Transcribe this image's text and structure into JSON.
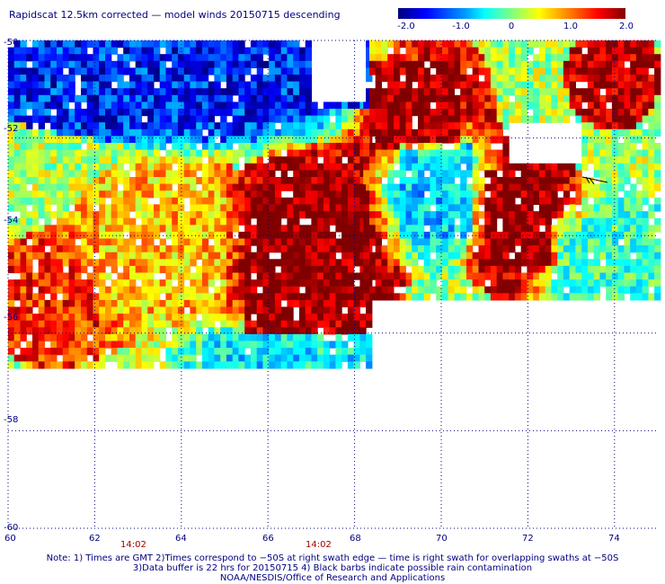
{
  "title": "Rapidscat 12.5km corrected — model winds 20150715 descending",
  "colorbar": {
    "labels": [
      "-2.0",
      "-1.0",
      "0",
      "1.0",
      "2.0"
    ],
    "values": [
      -2.0,
      -1.0,
      0.0,
      1.0,
      2.0
    ],
    "colors": [
      "#00007f",
      "#0000ff",
      "#00a0ff",
      "#00ffff",
      "#80ff80",
      "#ffff00",
      "#ff8000",
      "#ff0000",
      "#800000"
    ]
  },
  "axes": {
    "lon_ticks": [
      "60",
      "62",
      "64",
      "66",
      "68",
      "70",
      "72",
      "74"
    ],
    "lat_ticks": [
      "-50",
      "-52",
      "-54",
      "-56",
      "-58",
      "-60"
    ],
    "grid": "dotted"
  },
  "times": [
    {
      "label": "14:02",
      "lon": 62.8
    },
    {
      "label": "14:02",
      "lon": 66.8
    }
  ],
  "notes": [
    "Note: 1) Times are GMT 2)Times correspond to −50S at right swath edge — time is right swath for overlapping swaths at −50S",
    "3)Data buffer is 22 hrs for 20150715 4) Black barbs indicate possible rain contamination",
    "NOAA/NESDIS/Office of Research and Applications"
  ],
  "map": {
    "lon_range": [
      60,
      75
    ],
    "lat_range": [
      -50,
      -60
    ],
    "swaths": [
      {
        "name": "west",
        "lon": [
          60,
          68.3
        ],
        "lat": [
          -50,
          -56.6
        ]
      },
      {
        "name": "east",
        "lon": [
          68.2,
          75
        ],
        "lat": [
          -50,
          -55.3
        ]
      }
    ],
    "regions": [
      {
        "lon": [
          65.4,
          68.3
        ],
        "lat": [
          -53.0,
          -56.0
        ],
        "value": 2.2
      },
      {
        "lon": [
          68.3,
          70.4
        ],
        "lat": [
          -50.3,
          -52.2
        ],
        "value": 2.2
      },
      {
        "lon": [
          70.9,
          72.6
        ],
        "lat": [
          -52.6,
          -54.6
        ],
        "value": 2.2
      },
      {
        "lon": [
          73.4,
          74.4
        ],
        "lat": [
          -50.1,
          -51.2
        ],
        "value": 2.0
      },
      {
        "lon": [
          62.0,
          65.0
        ],
        "lat": [
          -53.0,
          -55.5
        ],
        "value": 0.8
      },
      {
        "lon": [
          60.0,
          62.0
        ],
        "lat": [
          -54.5,
          -56.0
        ],
        "value": 1.5
      },
      {
        "lon": [
          60.0,
          68.3
        ],
        "lat": [
          -50.0,
          -51.4
        ],
        "value": -1.6
      },
      {
        "lon": [
          64.5,
          68.3
        ],
        "lat": [
          -55.9,
          -56.6
        ],
        "value": -0.7
      },
      {
        "lon": [
          69.0,
          70.6
        ],
        "lat": [
          -52.0,
          -54.0
        ],
        "value": -0.8
      },
      {
        "lon": [
          72.5,
          75.0
        ],
        "lat": [
          -53.6,
          -55.3
        ],
        "value": -0.3
      }
    ],
    "gaps": [
      {
        "lon": [
          67.0,
          68.2
        ],
        "lat": [
          -50.0,
          -51.2
        ]
      },
      {
        "lon": [
          71.5,
          73.2
        ],
        "lat": [
          -51.6,
          -52.5
        ]
      },
      {
        "lon": [
          68.3,
          75.0
        ],
        "lat": [
          -55.3,
          -60.0
        ]
      }
    ]
  }
}
